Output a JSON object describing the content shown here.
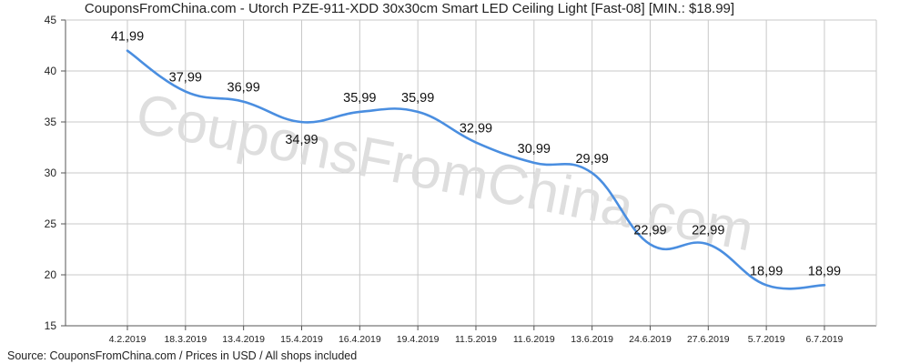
{
  "title": "CouponsFromChina.com - Utorch PZE-911-XDD 30x30cm Smart LED Ceiling Light [Fast-08] [MIN.: $18.99]",
  "source": "Source: CouponsFromChina.com / Prices in USD / All shops included",
  "watermark": "CouponsFromChina.com",
  "colors": {
    "line": "#4a8ee0",
    "grid": "#c8c8c8",
    "axis": "#555555",
    "plot_bg": "#ffffff"
  },
  "chart_data": {
    "type": "line",
    "categories": [
      "4.2.2019",
      "18.3.2019",
      "13.4.2019",
      "15.4.2019",
      "16.4.2019",
      "19.4.2019",
      "11.5.2019",
      "11.6.2019",
      "13.6.2019",
      "24.6.2019",
      "27.6.2019",
      "5.7.2019",
      "6.7.2019"
    ],
    "series": [
      {
        "values": [
          41.99,
          37.99,
          36.99,
          34.99,
          35.99,
          35.99,
          32.99,
          30.99,
          29.99,
          22.99,
          22.99,
          18.99,
          18.99
        ]
      }
    ],
    "data_labels": [
      "41,99",
      "37,99",
      "36,99",
      "34,99",
      "35,99",
      "35,99",
      "32,99",
      "30,99",
      "29,99",
      "22,99",
      "22,99",
      "18,99",
      "18,99"
    ],
    "label_positions": [
      "above",
      "above",
      "above",
      "below",
      "above",
      "above",
      "above",
      "above",
      "above",
      "above",
      "above",
      "above",
      "above"
    ],
    "ylim": [
      15,
      45
    ],
    "yticks": [
      15,
      20,
      25,
      30,
      35,
      40,
      45
    ],
    "grid": true,
    "xlabel": "",
    "ylabel": ""
  }
}
